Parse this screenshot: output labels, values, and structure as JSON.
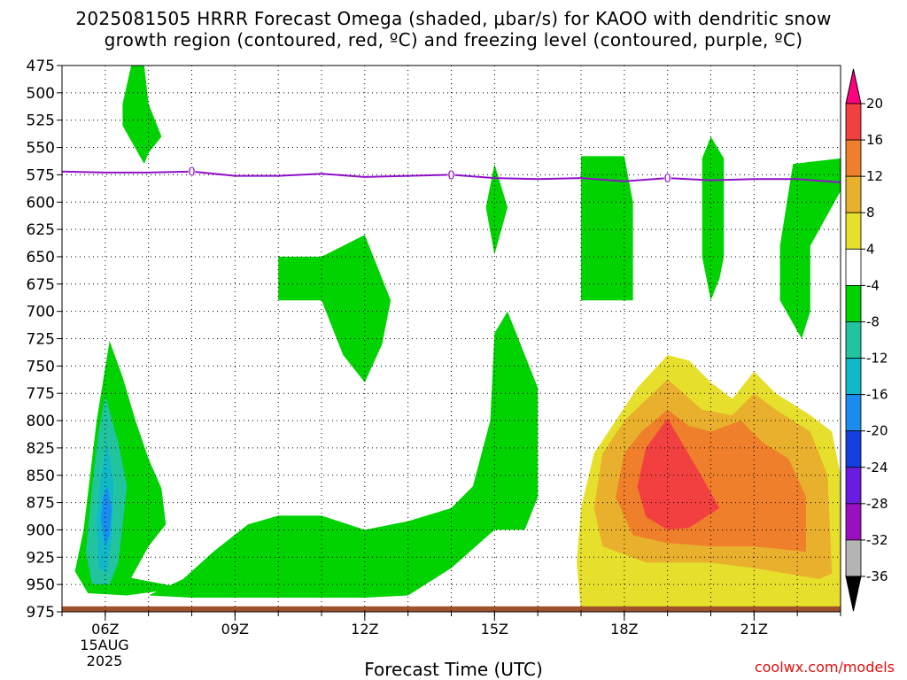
{
  "title_line1": "2025081505 HRRR Forecast Omega (shaded, μbar/s) for KAOO with dendritic snow",
  "title_line2": "growth region (contoured, red, ºC) and freezing level (contoured, purple, ºC)",
  "x_axis_title": "Forecast Time (UTC)",
  "credit": "coolwx.com/models",
  "date_label": {
    "day": "15AUG",
    "year": "2025"
  },
  "chart_data": {
    "type": "heatmap",
    "title": "2025081505 HRRR Forecast Omega (shaded, μbar/s) for KAOO",
    "xlabel": "Forecast Time (UTC)",
    "x_range_hours": [
      5,
      23
    ],
    "y_range_hpa": [
      475,
      975
    ],
    "y_ticks": [
      475,
      500,
      525,
      550,
      575,
      600,
      625,
      650,
      675,
      700,
      725,
      750,
      775,
      800,
      825,
      850,
      875,
      900,
      925,
      950,
      975
    ],
    "x_ticks": [
      {
        "hour": 6,
        "label": "06Z"
      },
      {
        "hour": 9,
        "label": "09Z"
      },
      {
        "hour": 12,
        "label": "12Z"
      },
      {
        "hour": 15,
        "label": "15Z"
      },
      {
        "hour": 18,
        "label": "18Z"
      },
      {
        "hour": 21,
        "label": "21Z"
      }
    ],
    "grid": true,
    "colorbar": {
      "labels": [
        "20",
        "16",
        "12",
        "8",
        "4",
        "-4",
        "-8",
        "-12",
        "-16",
        "-20",
        "-24",
        "-28",
        "-32",
        "-36"
      ],
      "colors": [
        "#ff007f",
        "#f24040",
        "#ef7f2a",
        "#e8b02c",
        "#e6e02c",
        "#ffffff",
        "#00d300",
        "#22c4a0",
        "#10b8c8",
        "#1a8cf0",
        "#1440e0",
        "#6a1ce0",
        "#9a10c0",
        "#b4b4b4",
        "#000000"
      ]
    },
    "freezing_level": {
      "label": "0",
      "color": "#9010c8",
      "points": [
        [
          5,
          572
        ],
        [
          6,
          573
        ],
        [
          7,
          573
        ],
        [
          8,
          572
        ],
        [
          9,
          576
        ],
        [
          10,
          576
        ],
        [
          11,
          574
        ],
        [
          12,
          577
        ],
        [
          13,
          576
        ],
        [
          14,
          575
        ],
        [
          15,
          578
        ],
        [
          16,
          579
        ],
        [
          17,
          578
        ],
        [
          18,
          581
        ],
        [
          19,
          578
        ],
        [
          20,
          580
        ],
        [
          21,
          579
        ],
        [
          22,
          579
        ],
        [
          23,
          582
        ]
      ],
      "label_hours": [
        8,
        14,
        19
      ]
    },
    "regions": [
      {
        "level": "-8",
        "color": "#00d300",
        "points": [
          [
            6.1,
            727
          ],
          [
            6.4,
            760
          ],
          [
            6.7,
            800
          ],
          [
            7.0,
            835
          ],
          [
            7.3,
            862
          ],
          [
            7.4,
            895
          ],
          [
            7.0,
            915
          ],
          [
            6.6,
            944
          ],
          [
            7.8,
            953
          ],
          [
            6.5,
            960
          ],
          [
            5.6,
            958
          ],
          [
            5.3,
            938
          ],
          [
            5.5,
            900
          ],
          [
            5.8,
            800
          ]
        ]
      },
      {
        "level": "-12",
        "color": "#22c4a0",
        "points": [
          [
            6.0,
            777
          ],
          [
            6.3,
            820
          ],
          [
            6.5,
            860
          ],
          [
            6.4,
            895
          ],
          [
            6.3,
            930
          ],
          [
            6.1,
            950
          ],
          [
            5.7,
            950
          ],
          [
            5.55,
            920
          ],
          [
            5.7,
            860
          ],
          [
            5.85,
            810
          ]
        ]
      },
      {
        "level": "-16",
        "color": "#10b8c8",
        "points": [
          [
            6.05,
            820
          ],
          [
            6.2,
            860
          ],
          [
            6.15,
            905
          ],
          [
            6.05,
            940
          ],
          [
            5.85,
            935
          ],
          [
            5.8,
            890
          ],
          [
            5.9,
            850
          ]
        ]
      },
      {
        "level": "-20",
        "color": "#1a8cf0",
        "points": [
          [
            6.05,
            860
          ],
          [
            6.15,
            880
          ],
          [
            6.1,
            905
          ],
          [
            6.0,
            915
          ],
          [
            5.9,
            890
          ],
          [
            5.95,
            870
          ]
        ]
      },
      {
        "level": "-8",
        "color": "#00d300",
        "points": [
          [
            6.6,
            475
          ],
          [
            6.9,
            475
          ],
          [
            7.0,
            510
          ],
          [
            7.3,
            540
          ],
          [
            7.0,
            555
          ],
          [
            6.9,
            565
          ],
          [
            6.4,
            530
          ],
          [
            6.4,
            510
          ]
        ]
      },
      {
        "level": "-8",
        "color": "#00d300",
        "points": [
          [
            10.0,
            650
          ],
          [
            11.0,
            650
          ],
          [
            12.0,
            630
          ],
          [
            12.6,
            690
          ],
          [
            12.4,
            730
          ],
          [
            12.0,
            765
          ],
          [
            11.5,
            740
          ],
          [
            11.0,
            690
          ],
          [
            10.0,
            690
          ]
        ]
      },
      {
        "level": "-8",
        "color": "#00d300",
        "points": [
          [
            7.0,
            960
          ],
          [
            7.8,
            945
          ],
          [
            8.5,
            920
          ],
          [
            9.3,
            895
          ],
          [
            10.0,
            887
          ],
          [
            11.0,
            887
          ],
          [
            12.0,
            900
          ],
          [
            13.0,
            892
          ],
          [
            14.0,
            880
          ],
          [
            14.5,
            860
          ],
          [
            14.9,
            800
          ],
          [
            15.0,
            720
          ],
          [
            15.3,
            700
          ],
          [
            16.0,
            770
          ],
          [
            16.0,
            800
          ],
          [
            16.0,
            870
          ],
          [
            15.7,
            900
          ],
          [
            15.0,
            900
          ],
          [
            14.0,
            935
          ],
          [
            13.0,
            960
          ],
          [
            12.0,
            962
          ],
          [
            10.0,
            962
          ],
          [
            9.0,
            962
          ],
          [
            8.0,
            962
          ]
        ]
      },
      {
        "level": "-8",
        "color": "#00d300",
        "points": [
          [
            15.0,
            565
          ],
          [
            15.3,
            605
          ],
          [
            15.0,
            648
          ],
          [
            14.8,
            605
          ]
        ]
      },
      {
        "level": "-8",
        "color": "#00d300",
        "points": [
          [
            17.0,
            558
          ],
          [
            18.0,
            558
          ],
          [
            18.2,
            600
          ],
          [
            18.2,
            690
          ],
          [
            17.0,
            690
          ]
        ]
      },
      {
        "level": "-8",
        "color": "#00d300",
        "points": [
          [
            20.0,
            540
          ],
          [
            20.3,
            560
          ],
          [
            20.3,
            650
          ],
          [
            20.2,
            670
          ],
          [
            20.0,
            690
          ],
          [
            19.8,
            650
          ],
          [
            19.8,
            560
          ]
        ]
      },
      {
        "level": "-8",
        "color": "#00d300",
        "points": [
          [
            21.9,
            565
          ],
          [
            23.0,
            560
          ],
          [
            23.0,
            590
          ],
          [
            22.3,
            640
          ],
          [
            22.3,
            700
          ],
          [
            22.1,
            725
          ],
          [
            21.6,
            690
          ],
          [
            21.6,
            640
          ]
        ]
      },
      {
        "level": "4",
        "color": "#e6e02c",
        "points": [
          [
            19.0,
            740
          ],
          [
            19.5,
            745
          ],
          [
            20.0,
            765
          ],
          [
            20.5,
            780
          ],
          [
            21.0,
            755
          ],
          [
            21.5,
            775
          ],
          [
            22.3,
            795
          ],
          [
            22.8,
            810
          ],
          [
            23.0,
            850
          ],
          [
            23.0,
            975
          ],
          [
            17.0,
            975
          ],
          [
            16.9,
            930
          ],
          [
            17.0,
            880
          ],
          [
            17.3,
            830
          ],
          [
            17.8,
            800
          ],
          [
            18.3,
            770
          ]
        ]
      },
      {
        "level": "8",
        "color": "#e8b02c",
        "points": [
          [
            19.0,
            762
          ],
          [
            19.8,
            790
          ],
          [
            20.5,
            795
          ],
          [
            21.0,
            775
          ],
          [
            21.5,
            790
          ],
          [
            22.3,
            810
          ],
          [
            22.7,
            850
          ],
          [
            22.8,
            940
          ],
          [
            22.5,
            945
          ],
          [
            21.0,
            935
          ],
          [
            20.0,
            930
          ],
          [
            18.5,
            930
          ],
          [
            17.5,
            915
          ],
          [
            17.3,
            880
          ],
          [
            17.5,
            830
          ],
          [
            18.0,
            800
          ]
        ]
      },
      {
        "level": "12",
        "color": "#ef7f2a",
        "points": [
          [
            19.0,
            790
          ],
          [
            19.5,
            805
          ],
          [
            20.0,
            810
          ],
          [
            20.7,
            800
          ],
          [
            21.2,
            820
          ],
          [
            21.8,
            835
          ],
          [
            22.2,
            870
          ],
          [
            22.2,
            920
          ],
          [
            21.0,
            915
          ],
          [
            20.0,
            915
          ],
          [
            19.0,
            912
          ],
          [
            18.2,
            905
          ],
          [
            17.8,
            870
          ],
          [
            18.0,
            830
          ],
          [
            18.4,
            810
          ]
        ]
      },
      {
        "level": "16",
        "color": "#f24040",
        "points": [
          [
            19.0,
            798
          ],
          [
            19.7,
            845
          ],
          [
            20.2,
            880
          ],
          [
            19.5,
            898
          ],
          [
            19.0,
            900
          ],
          [
            18.5,
            888
          ],
          [
            18.3,
            860
          ],
          [
            18.5,
            825
          ]
        ]
      }
    ]
  }
}
